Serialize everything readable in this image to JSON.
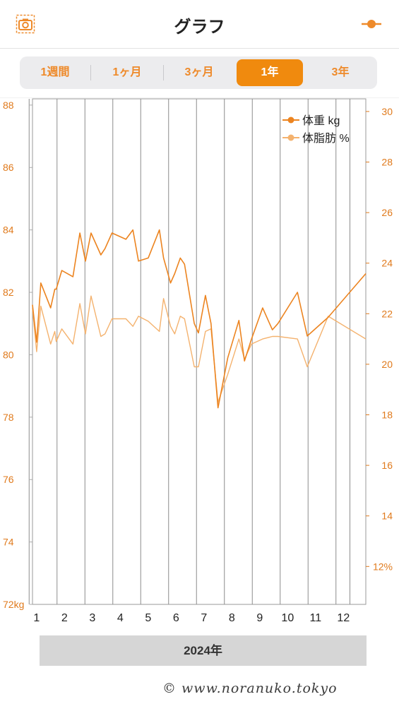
{
  "header": {
    "title": "グラフ",
    "camera_icon": "camera-icon",
    "settings_icon": "slider-icon"
  },
  "periods": [
    {
      "label": "1週間",
      "active": false
    },
    {
      "label": "1ヶ月",
      "active": false
    },
    {
      "label": "3ヶ月",
      "active": false
    },
    {
      "label": "1年",
      "active": true
    },
    {
      "label": "3年",
      "active": false
    }
  ],
  "colors": {
    "accent": "#f08a0e",
    "weight": "#ec8420",
    "fat": "#f4b26e"
  },
  "chart_data": {
    "type": "line",
    "x_unit": "month",
    "xlim": [
      0.7,
      12.65
    ],
    "x_ticks": [
      1,
      2,
      3,
      4,
      5,
      6,
      7,
      8,
      9,
      10,
      11,
      12
    ],
    "x_tick_labels": [
      "1",
      "2",
      "3",
      "4",
      "5",
      "6",
      "7",
      "8",
      "9",
      "10",
      "11",
      "12"
    ],
    "xlabel": "2024年",
    "y_left": {
      "lim": [
        72,
        88.2
      ],
      "ticks": [
        72,
        74,
        76,
        78,
        80,
        82,
        84,
        86,
        88
      ],
      "tick_labels": [
        "72kg",
        "74",
        "76",
        "78",
        "80",
        "82",
        "84",
        "86",
        "88"
      ]
    },
    "y_right": {
      "lim": [
        10.5,
        30.5
      ],
      "ticks": [
        12,
        14,
        16,
        18,
        20,
        22,
        24,
        26,
        28,
        30
      ],
      "tick_labels": [
        "12%",
        "14",
        "16",
        "18",
        "20",
        "22",
        "24",
        "26",
        "28",
        "30"
      ]
    },
    "legend": {
      "position": "top-right"
    },
    "series": [
      {
        "name": "体重 kg",
        "axis": "left",
        "x": [
          0.7,
          0.85,
          1.0,
          1.35,
          1.5,
          1.55,
          1.75,
          2.15,
          2.4,
          2.6,
          2.8,
          3.15,
          3.3,
          3.55,
          4.05,
          4.3,
          4.5,
          4.85,
          5.25,
          5.4,
          5.65,
          5.8,
          6.0,
          6.15,
          6.5,
          6.65,
          6.9,
          7.1,
          7.35,
          7.7,
          8.1,
          8.3,
          8.55,
          8.95,
          9.3,
          9.5,
          10.2,
          10.55,
          11.3,
          12.65
        ],
        "y": [
          81.6,
          80.4,
          82.3,
          81.5,
          82.1,
          82.1,
          82.7,
          82.5,
          83.9,
          83.0,
          83.9,
          83.2,
          83.4,
          83.9,
          83.7,
          84.0,
          83.0,
          83.1,
          84.0,
          83.1,
          82.3,
          82.6,
          83.1,
          82.9,
          81.0,
          80.7,
          81.9,
          81.0,
          78.3,
          79.9,
          81.1,
          79.8,
          80.5,
          81.5,
          80.8,
          81.0,
          82.0,
          80.6,
          81.2,
          82.6
        ]
      },
      {
        "name": "体脂肪 %",
        "axis": "right",
        "x": [
          0.7,
          0.85,
          1.0,
          1.35,
          1.5,
          1.55,
          1.75,
          2.15,
          2.4,
          2.6,
          2.8,
          3.15,
          3.3,
          3.55,
          4.05,
          4.3,
          4.5,
          4.85,
          5.25,
          5.4,
          5.65,
          5.8,
          6.0,
          6.15,
          6.5,
          6.65,
          6.9,
          7.1,
          7.35,
          7.7,
          8.1,
          8.3,
          8.55,
          8.95,
          9.3,
          9.5,
          10.2,
          10.55,
          11.3,
          12.65
        ],
        "y": [
          22.2,
          20.5,
          22.3,
          20.8,
          21.3,
          20.9,
          21.4,
          20.8,
          22.4,
          21.2,
          22.7,
          21.1,
          21.2,
          21.8,
          21.8,
          21.5,
          21.9,
          21.7,
          21.3,
          22.6,
          21.5,
          21.2,
          21.9,
          21.8,
          19.9,
          19.9,
          21.3,
          21.4,
          18.5,
          19.6,
          21.0,
          20.2,
          20.8,
          21.0,
          21.1,
          21.1,
          21.0,
          19.9,
          21.9,
          21.0
        ]
      }
    ]
  },
  "footer": {
    "watermark": "© www.noranuko.tokyo"
  }
}
